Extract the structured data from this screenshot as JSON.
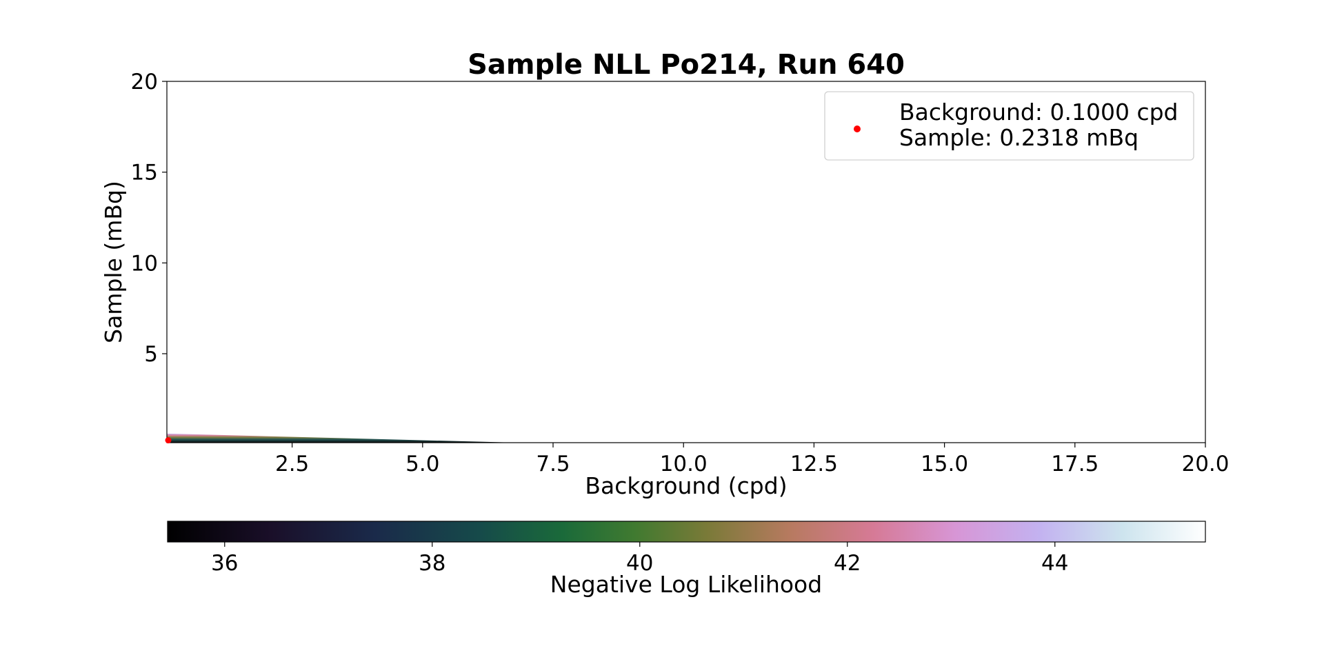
{
  "chart_data": {
    "type": "heatmap",
    "title": "Sample NLL Po214, Run 640",
    "xlabel": "Background (cpd)",
    "ylabel": "Sample (mBq)",
    "xlim": [
      0.1,
      20.0
    ],
    "ylim": [
      0.1,
      20.0
    ],
    "x_ticks": [
      2.5,
      5.0,
      7.5,
      10.0,
      12.5,
      15.0,
      17.5,
      20.0
    ],
    "x_tick_labels": [
      "2.5",
      "5.0",
      "7.5",
      "10.0",
      "12.5",
      "15.0",
      "17.5",
      "20.0"
    ],
    "y_ticks": [
      5,
      10,
      15,
      20
    ],
    "y_tick_labels": [
      "5",
      "10",
      "15",
      "20"
    ],
    "grid": false,
    "best_fit": {
      "x": 0.1,
      "y": 0.2318,
      "color": "#ff0000"
    },
    "legend": {
      "placement": "upper right",
      "lines": [
        "Background: 0.1000 cpd",
        "Sample: 0.2318 mBq"
      ]
    },
    "heatmap_band": {
      "description_values": {
        "x_end": 6.8,
        "y_top_at_xmin": 0.6
      }
    },
    "colorbar": {
      "label": "Negative Log Likelihood",
      "colormap": "cubehelix",
      "vmin": 35.45,
      "vmax": 45.45,
      "ticks": [
        36,
        38,
        40,
        42,
        44
      ],
      "tick_labels": [
        "36",
        "38",
        "40",
        "42",
        "44"
      ]
    }
  }
}
